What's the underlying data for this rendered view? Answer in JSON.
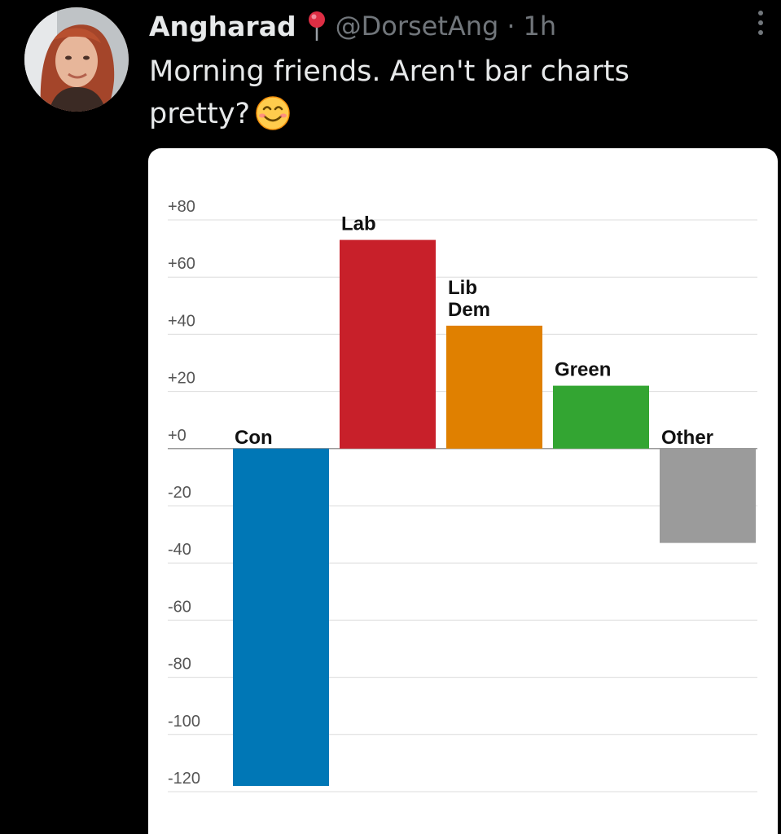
{
  "tweet": {
    "display_name": "Angharad",
    "handle": "@DorsetAng",
    "separator": "·",
    "time": "1h",
    "text": "Morning friends. Aren't bar charts pretty?",
    "icons": {
      "avatar": "profile-photo",
      "name_emoji": "round-pushpin-icon",
      "text_emoji": "smiling-face-icon",
      "more": "more-options-icon"
    }
  },
  "chart_data": {
    "type": "bar",
    "title": "",
    "xlabel": "",
    "ylabel": "",
    "categories": [
      "Con",
      "Lab",
      "Lib Dem",
      "Green",
      "Other"
    ],
    "values": [
      -118,
      73,
      43,
      22,
      -33
    ],
    "colors": [
      "#0077b6",
      "#c8202a",
      "#e08000",
      "#33a532",
      "#9b9b9b"
    ],
    "ylim": [
      -120,
      80
    ],
    "y_ticks": [
      "+80",
      "+60",
      "+40",
      "+20",
      "+0",
      "-20",
      "-40",
      "-60",
      "-80",
      "-100",
      "-120"
    ],
    "grid": true,
    "legend": "none"
  }
}
